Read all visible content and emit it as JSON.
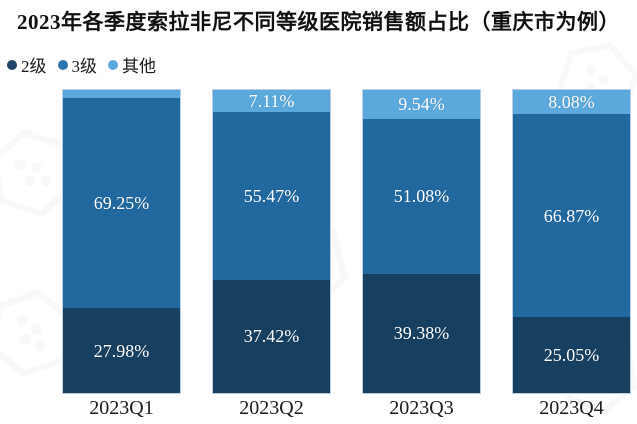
{
  "title": "2023年各季度索拉非尼不同等级医院销售额占比（重庆市为例）",
  "legend": {
    "items": [
      {
        "label": "2级",
        "color": "#1F4468"
      },
      {
        "label": "3级",
        "color": "#2E75AE"
      },
      {
        "label": "其他",
        "color": "#5BA8DC"
      }
    ]
  },
  "chart_data": {
    "type": "bar",
    "stacked": true,
    "title": "2023年各季度索拉非尼不同等级医院销售额占比（重庆市为例）",
    "categories": [
      "2023Q1",
      "2023Q2",
      "2023Q3",
      "2023Q4"
    ],
    "series": [
      {
        "name": "2级",
        "color": "#173F5F",
        "values": [
          27.98,
          37.42,
          39.38,
          25.05
        ],
        "labels": [
          "27.98%",
          "37.42%",
          "39.38%",
          "25.05%"
        ]
      },
      {
        "name": "3级",
        "color": "#21689F",
        "values": [
          69.25,
          55.47,
          51.08,
          66.87
        ],
        "labels": [
          "69.25%",
          "55.47%",
          "51.08%",
          "66.87%"
        ]
      },
      {
        "name": "其他",
        "color": "#5BA8DC",
        "values": [
          2.77,
          7.11,
          9.54,
          8.08
        ],
        "labels": [
          "",
          "7.11%",
          "9.54%",
          "8.08%"
        ]
      }
    ],
    "value_suffix": "%",
    "ylim": [
      0,
      100
    ],
    "grid": false,
    "legend_position": "top-left",
    "data_label_color": "#FFFFFF",
    "bar_outline_color": "#BCCFE2"
  }
}
